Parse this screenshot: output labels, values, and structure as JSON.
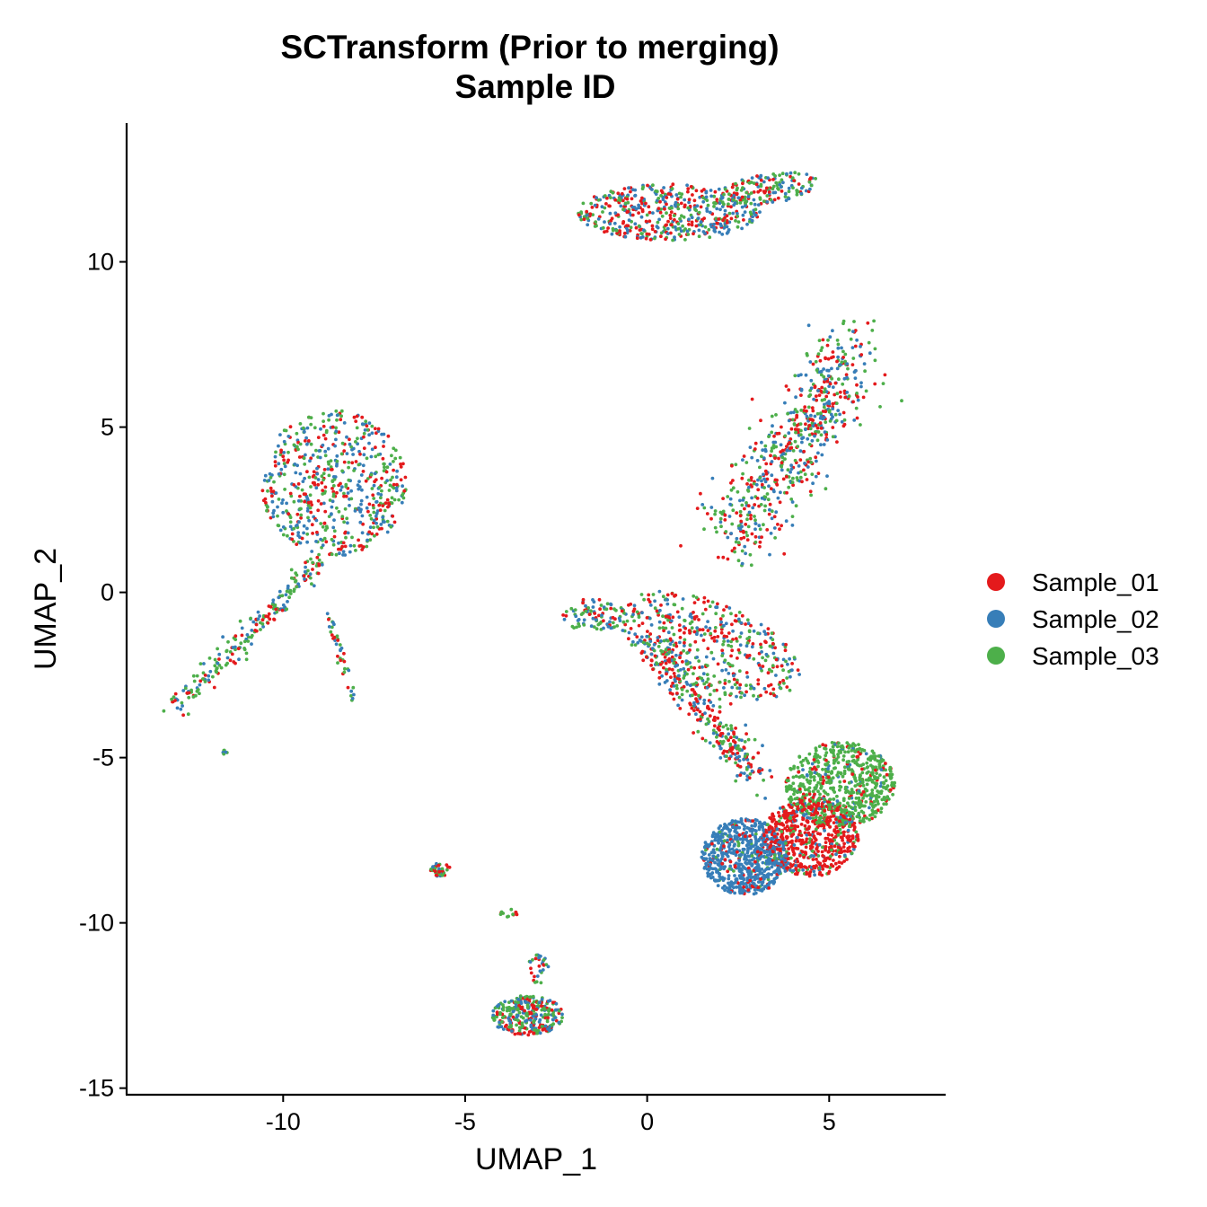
{
  "chart_data": {
    "type": "scatter",
    "title": [
      "SCTransform (Prior to merging)",
      "Sample ID"
    ],
    "xlabel": "UMAP_1",
    "ylabel": "UMAP_2",
    "xlim": [
      -14.3,
      8.2
    ],
    "ylim": [
      -15.2,
      14.2
    ],
    "x_ticks": [
      -10,
      -5,
      0,
      5
    ],
    "y_ticks": [
      10,
      5,
      0,
      -5,
      -10,
      -15
    ],
    "grid": false,
    "legend_position": "right",
    "series": [
      {
        "name": "Sample_01",
        "color": "#E41A1C"
      },
      {
        "name": "Sample_02",
        "color": "#377EB8"
      },
      {
        "name": "Sample_03",
        "color": "#4DAF4A"
      }
    ],
    "clusters": [
      {
        "shape": "ellipse",
        "cx": 0.6,
        "cy": 11.5,
        "rx": 2.5,
        "ry": 0.85,
        "angle": 0,
        "n": 500,
        "weights": [
          1,
          1,
          1
        ]
      },
      {
        "shape": "ellipse",
        "cx": 3.3,
        "cy": 12.2,
        "rx": 1.4,
        "ry": 0.45,
        "angle": 10,
        "n": 150,
        "weights": [
          1,
          1,
          1.6
        ]
      },
      {
        "shape": "ellipse",
        "cx": -8.6,
        "cy": 3.3,
        "rx": 2.0,
        "ry": 2.2,
        "angle": 0,
        "n": 600,
        "weights": [
          1,
          1.2,
          1.2
        ]
      },
      {
        "shape": "segment",
        "x0": -9.0,
        "y0": 1.0,
        "x1": -12.9,
        "y1": -3.5,
        "width": 0.35,
        "n": 220,
        "weights": [
          0.8,
          0.8,
          1.4
        ]
      },
      {
        "shape": "segment",
        "x0": -8.8,
        "y0": -0.5,
        "x1": -8.0,
        "y1": -3.3,
        "width": 0.12,
        "n": 40,
        "weights": [
          0.5,
          1,
          1
        ]
      },
      {
        "shape": "ellipse",
        "cx": -11.6,
        "cy": -4.8,
        "rx": 0.08,
        "ry": 0.1,
        "angle": 0,
        "n": 6,
        "weights": [
          0,
          1,
          1
        ]
      },
      {
        "shape": "segment",
        "x0": 2.3,
        "y0": 1.5,
        "x1": 5.7,
        "y1": 7.4,
        "width": 1.1,
        "n": 650,
        "weights": [
          1.1,
          1,
          1
        ]
      },
      {
        "shape": "ellipse",
        "cx": 1.7,
        "cy": -1.6,
        "rx": 2.7,
        "ry": 1.3,
        "angle": -25,
        "n": 450,
        "weights": [
          1.2,
          1,
          1.1
        ]
      },
      {
        "shape": "segment",
        "x0": 0.2,
        "y0": -1.7,
        "x1": 3.0,
        "y1": -5.6,
        "width": 0.55,
        "n": 320,
        "weights": [
          1.4,
          1,
          0.9
        ]
      },
      {
        "shape": "ellipse",
        "cx": -1.5,
        "cy": -0.7,
        "rx": 0.9,
        "ry": 0.5,
        "angle": 0,
        "n": 90,
        "weights": [
          1,
          1,
          1.3
        ]
      },
      {
        "shape": "ellipse",
        "cx": 5.3,
        "cy": -5.8,
        "rx": 1.5,
        "ry": 1.3,
        "angle": 0,
        "n": 650,
        "weights": [
          0.12,
          0.08,
          1
        ]
      },
      {
        "shape": "ellipse",
        "cx": 4.5,
        "cy": -7.4,
        "rx": 1.3,
        "ry": 1.2,
        "angle": 0,
        "n": 650,
        "weights": [
          1,
          0.12,
          0.15
        ]
      },
      {
        "shape": "ellipse",
        "cx": 2.7,
        "cy": -8.0,
        "rx": 1.2,
        "ry": 1.15,
        "angle": 0,
        "n": 700,
        "weights": [
          0.1,
          1,
          0.06
        ]
      },
      {
        "shape": "ellipse",
        "cx": -5.7,
        "cy": -8.4,
        "rx": 0.3,
        "ry": 0.2,
        "angle": 0,
        "n": 45,
        "weights": [
          0.5,
          1,
          1
        ]
      },
      {
        "shape": "ellipse",
        "cx": -3.3,
        "cy": -12.8,
        "rx": 1.0,
        "ry": 0.6,
        "angle": 0,
        "n": 320,
        "weights": [
          1,
          1,
          1.3
        ]
      },
      {
        "shape": "ellipse",
        "cx": -3.0,
        "cy": -11.4,
        "rx": 0.3,
        "ry": 0.45,
        "angle": 0,
        "n": 30,
        "weights": [
          1,
          1,
          0.6
        ]
      },
      {
        "shape": "ellipse",
        "cx": -3.8,
        "cy": -9.7,
        "rx": 0.25,
        "ry": 0.12,
        "angle": 0,
        "n": 12,
        "weights": [
          1,
          0.4,
          1
        ]
      }
    ]
  }
}
